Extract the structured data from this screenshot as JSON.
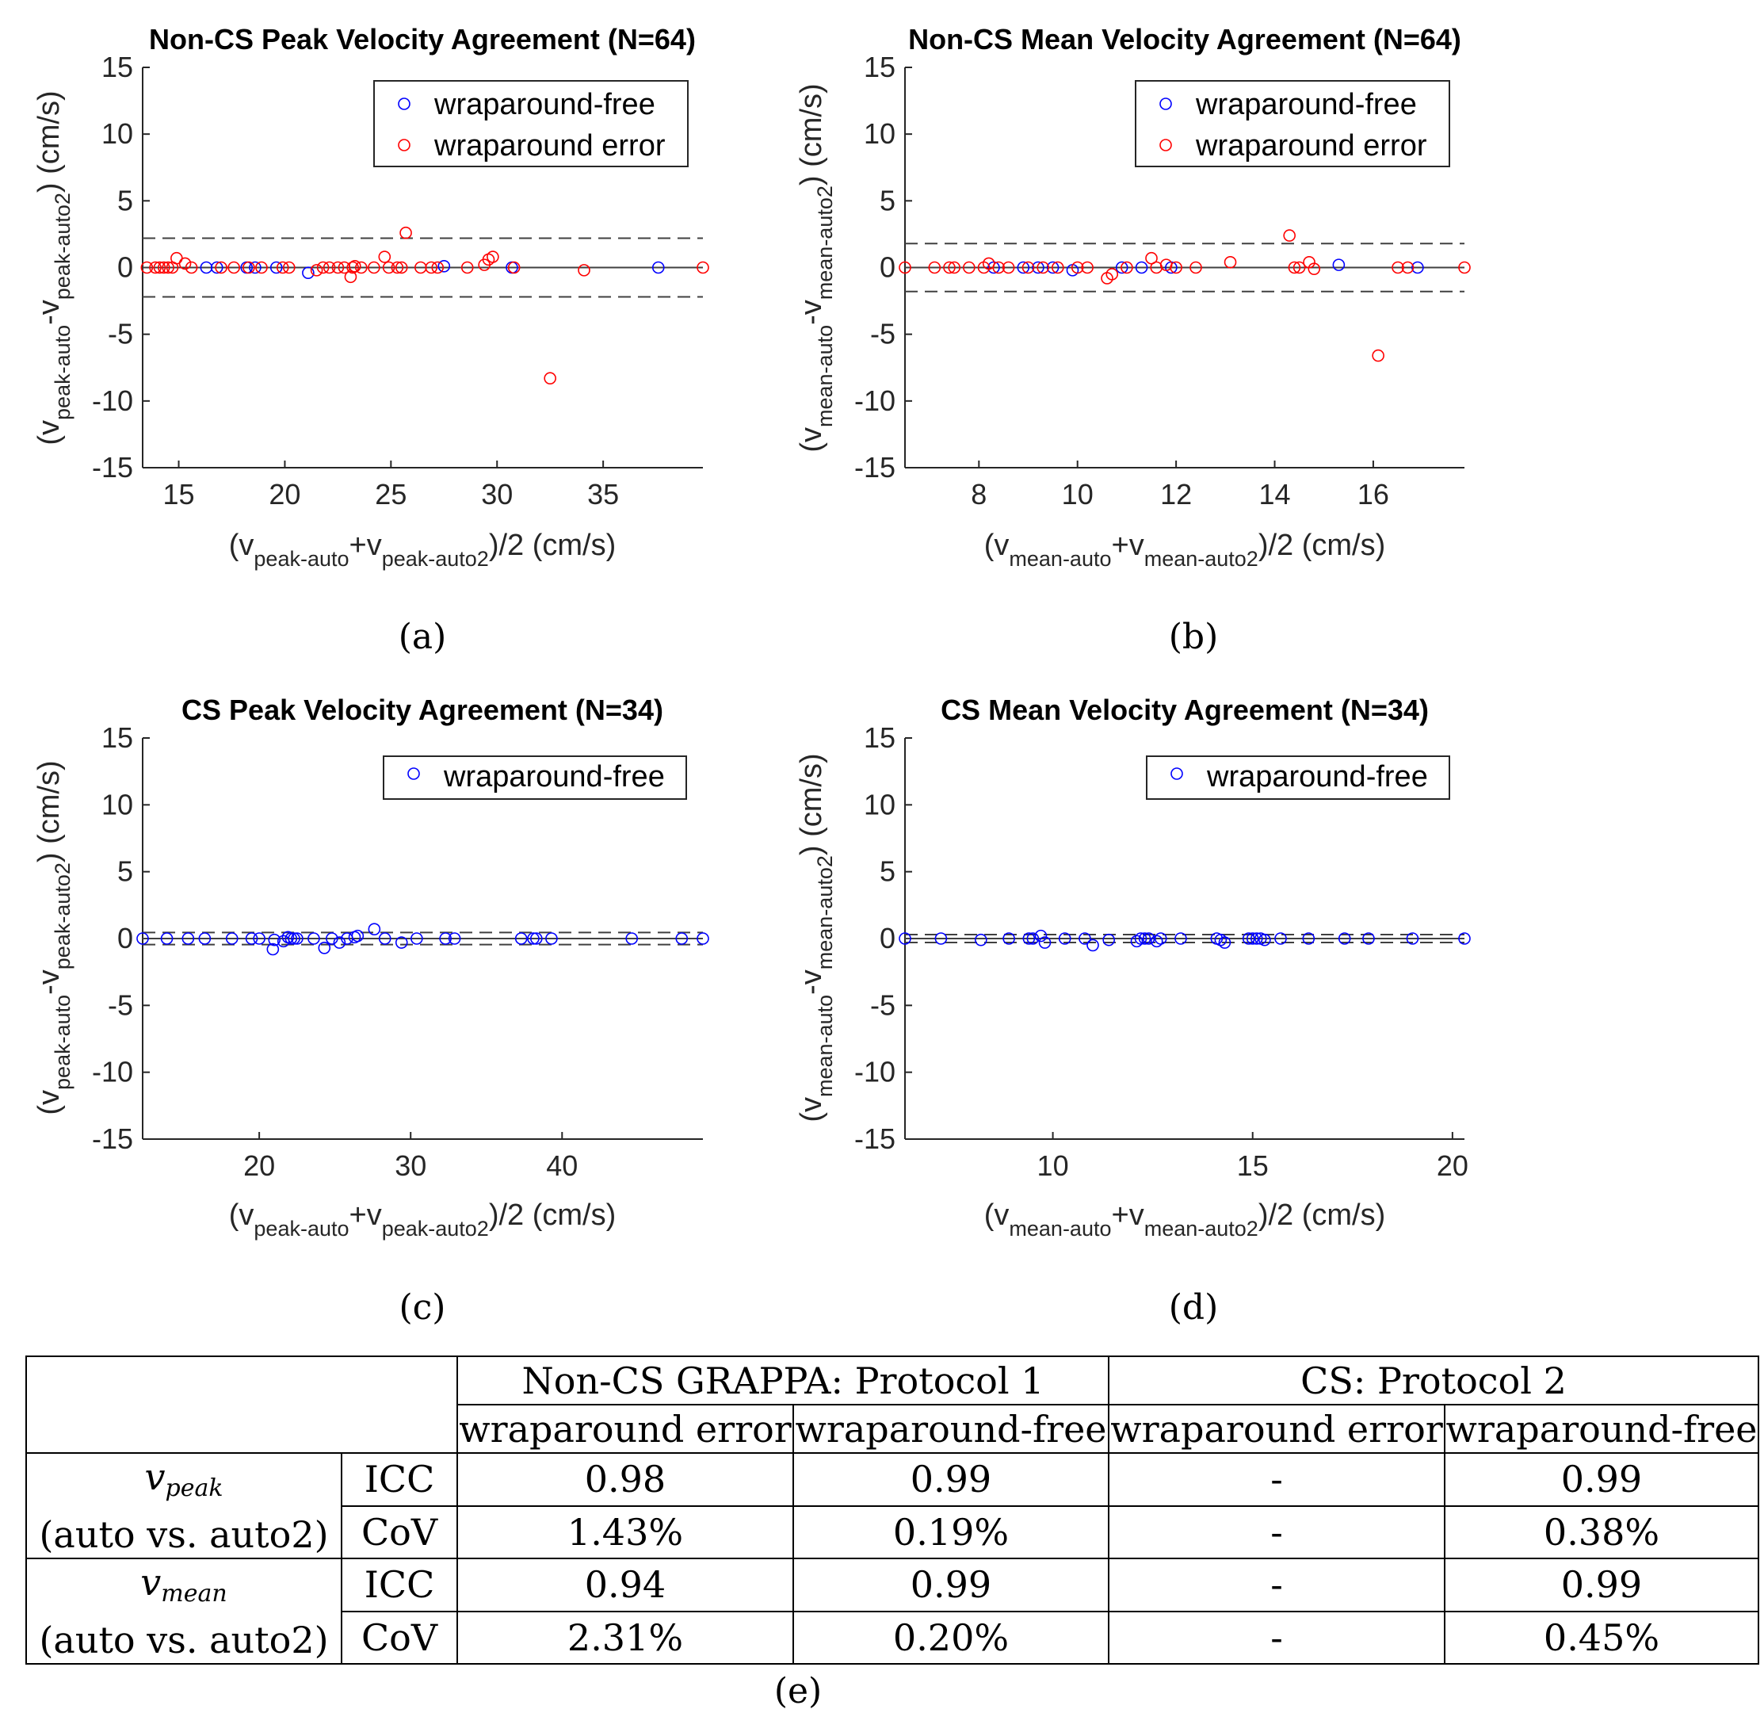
{
  "chart_data": [
    {
      "type": "scatter",
      "panel": "a",
      "title": "Non-CS Peak Velocity Agreement (N=64)",
      "xlabel": "(v_peak-auto + v_peak-auto2)/2 (cm/s)",
      "ylabel": "(v_peak-auto - v_peak-auto2) (cm/s)",
      "xlabel_parts": {
        "pre": "(v",
        "s1": "peak-auto",
        "mid": "+v",
        "s2": "peak-auto2",
        "post": ")/2 (cm/s)"
      },
      "ylabel_parts": {
        "pre": "(v",
        "s1": "peak-auto",
        "mid": "-v",
        "s2": "peak-auto2",
        "post": ") (cm/s)"
      },
      "xlim": [
        13.3,
        39.7
      ],
      "ylim": [
        -15,
        15
      ],
      "xticks": [
        15,
        20,
        25,
        30,
        35
      ],
      "yticks": [
        15,
        10,
        5,
        0,
        -5,
        -10,
        -15
      ],
      "mean_line": 0,
      "limits_of_agreement": [
        2.2,
        -2.2
      ],
      "caption": "(a)",
      "legend": [
        "wraparound-free",
        "wraparound error"
      ],
      "series": [
        {
          "name": "wraparound-free",
          "color": "#0000ff",
          "x": [
            16.3,
            16.8,
            18.2,
            18.6,
            19.6,
            21.1,
            27.5,
            30.7,
            37.6
          ],
          "y": [
            0,
            0,
            0,
            0,
            0,
            -0.4,
            0.1,
            0,
            0
          ]
        },
        {
          "name": "wraparound error",
          "color": "#ff0000",
          "x": [
            13.5,
            13.9,
            14.1,
            14.3,
            14.5,
            14.7,
            14.9,
            15.3,
            15.6,
            17.0,
            17.6,
            18.3,
            18.9,
            19.9,
            20.2,
            21.5,
            21.8,
            22.1,
            22.5,
            22.8,
            23.1,
            23.2,
            23.3,
            23.6,
            24.2,
            24.7,
            24.9,
            25.3,
            25.5,
            25.7,
            26.4,
            26.9,
            27.2,
            28.6,
            29.4,
            29.6,
            29.8,
            30.8,
            32.5,
            34.1,
            39.7
          ],
          "y": [
            0,
            0,
            0,
            0,
            0,
            0,
            0.7,
            0.3,
            0,
            0,
            0,
            0,
            0,
            0,
            0,
            -0.2,
            0,
            0,
            0,
            0,
            -0.7,
            0,
            0.1,
            0,
            0,
            0.8,
            0,
            0,
            0,
            2.6,
            0,
            0,
            0,
            0,
            0.2,
            0.6,
            0.8,
            0,
            -8.3,
            -0.2,
            0
          ]
        }
      ]
    },
    {
      "type": "scatter",
      "panel": "b",
      "title": "Non-CS Mean Velocity Agreement (N=64)",
      "xlabel": "(v_mean-auto + v_mean-auto2)/2 (cm/s)",
      "ylabel": "(v_mean-auto - v_mean-auto2) (cm/s)",
      "xlabel_parts": {
        "pre": "(v",
        "s1": "mean-auto",
        "mid": "+v",
        "s2": "mean-auto2",
        "post": ")/2 (cm/s)"
      },
      "ylabel_parts": {
        "pre": "(v",
        "s1": "mean-auto",
        "mid": "-v",
        "s2": "mean-auto2",
        "post": ") (cm/s)"
      },
      "xlim": [
        6.5,
        17.85
      ],
      "ylim": [
        -15,
        15
      ],
      "xticks": [
        8,
        10,
        12,
        14,
        16
      ],
      "yticks": [
        15,
        10,
        5,
        0,
        -5,
        -10,
        -15
      ],
      "mean_line": 0,
      "limits_of_agreement": [
        1.8,
        -1.8
      ],
      "caption": "(b)",
      "legend": [
        "wraparound-free",
        "wraparound error"
      ],
      "series": [
        {
          "name": "wraparound-free",
          "color": "#0000ff",
          "x": [
            8.3,
            8.9,
            9.2,
            9.5,
            9.9,
            10.9,
            11.3,
            11.9,
            15.3,
            16.9
          ],
          "y": [
            0,
            0,
            0,
            0,
            -0.2,
            0,
            0,
            0,
            0.2,
            0
          ]
        },
        {
          "name": "wraparound error",
          "color": "#ff0000",
          "x": [
            6.5,
            7.1,
            7.4,
            7.5,
            7.8,
            8.1,
            8.2,
            8.4,
            8.6,
            9.0,
            9.3,
            9.6,
            10.0,
            10.2,
            10.6,
            10.7,
            11.0,
            11.5,
            11.6,
            11.8,
            12.0,
            12.4,
            13.1,
            14.3,
            14.4,
            14.5,
            14.7,
            14.8,
            16.1,
            16.5,
            16.7,
            17.85
          ],
          "y": [
            0,
            0,
            0,
            0,
            0,
            0,
            0.3,
            0,
            0,
            0,
            0,
            0,
            0,
            0,
            -0.8,
            -0.5,
            0,
            0.7,
            0,
            0.2,
            0,
            0,
            0.4,
            2.4,
            0,
            0,
            0.4,
            -0.1,
            -6.6,
            0,
            0,
            0
          ]
        }
      ]
    },
    {
      "type": "scatter",
      "panel": "c",
      "title": "CS Peak Velocity Agreement (N=34)",
      "xlabel": "(v_peak-auto + v_peak-auto2)/2 (cm/s)",
      "ylabel": "(v_peak-auto - v_peak-auto2) (cm/s)",
      "xlabel_parts": {
        "pre": "(v",
        "s1": "peak-auto",
        "mid": "+v",
        "s2": "peak-auto2",
        "post": ")/2 (cm/s)"
      },
      "ylabel_parts": {
        "pre": "(v",
        "s1": "peak-auto",
        "mid": "-v",
        "s2": "peak-auto2",
        "post": ") (cm/s)"
      },
      "xlim": [
        12.3,
        49.3
      ],
      "ylim": [
        -15,
        15
      ],
      "xticks": [
        20,
        30,
        40
      ],
      "yticks": [
        15,
        10,
        5,
        0,
        -5,
        -10,
        -15
      ],
      "mean_line": 0,
      "limits_of_agreement": [
        0.45,
        -0.45
      ],
      "caption": "(c)",
      "legend": [
        "wraparound-free"
      ],
      "series": [
        {
          "name": "wraparound-free",
          "color": "#0000ff",
          "x": [
            12.3,
            13.9,
            15.3,
            16.4,
            18.2,
            19.5,
            20.0,
            20.9,
            21.0,
            21.6,
            21.9,
            22.1,
            22.3,
            22.5,
            23.6,
            24.3,
            24.8,
            25.3,
            25.8,
            26.3,
            26.5,
            27.6,
            28.3,
            29.4,
            30.4,
            32.3,
            32.9,
            37.3,
            38.1,
            38.3,
            39.3,
            44.6,
            47.9,
            49.3
          ],
          "y": [
            0,
            0,
            0,
            0,
            0,
            0,
            0,
            -0.8,
            -0.1,
            -0.2,
            0.1,
            0,
            0,
            0,
            0,
            -0.7,
            0,
            -0.3,
            0,
            0.1,
            0.2,
            0.7,
            0,
            -0.3,
            0,
            0,
            0,
            0,
            0,
            0,
            0,
            0,
            0,
            0
          ]
        }
      ]
    },
    {
      "type": "scatter",
      "panel": "d",
      "title": "CS Mean Velocity Agreement (N=34)",
      "xlabel": "(v_mean-auto + v_mean-auto2)/2 (cm/s)",
      "ylabel": "(v_mean-auto - v_mean-auto2) (cm/s)",
      "xlabel_parts": {
        "pre": "(v",
        "s1": "mean-auto",
        "mid": "+v",
        "s2": "mean-auto2",
        "post": ")/2 (cm/s)"
      },
      "ylabel_parts": {
        "pre": "(v",
        "s1": "mean-auto",
        "mid": "-v",
        "s2": "mean-auto2",
        "post": ") (cm/s)"
      },
      "xlim": [
        6.3,
        20.3
      ],
      "ylim": [
        -15,
        15
      ],
      "xticks": [
        10,
        15,
        20
      ],
      "yticks": [
        15,
        10,
        5,
        0,
        -5,
        -10,
        -15
      ],
      "mean_line": 0,
      "limits_of_agreement": [
        0.3,
        -0.3
      ],
      "caption": "(d)",
      "legend": [
        "wraparound-free"
      ],
      "series": [
        {
          "name": "wraparound-free",
          "color": "#0000ff",
          "x": [
            6.3,
            7.2,
            8.2,
            8.9,
            9.4,
            9.5,
            9.7,
            9.8,
            10.3,
            10.8,
            11.0,
            11.4,
            12.1,
            12.2,
            12.3,
            12.4,
            12.6,
            12.7,
            13.2,
            14.1,
            14.2,
            14.3,
            14.9,
            15.0,
            15.1,
            15.2,
            15.3,
            15.7,
            16.4,
            17.3,
            17.9,
            19.0,
            20.3
          ],
          "y": [
            0,
            0,
            -0.1,
            0,
            0,
            0,
            0.2,
            -0.3,
            0,
            0,
            -0.5,
            -0.1,
            -0.2,
            0,
            0,
            0,
            -0.2,
            0,
            0,
            0,
            -0.1,
            -0.3,
            0,
            0,
            0,
            0,
            -0.1,
            0,
            0,
            0,
            0,
            0,
            0
          ]
        }
      ]
    }
  ],
  "table": {
    "caption": "(e)",
    "group_headers": [
      "Non-CS GRAPPA: Protocol 1",
      "CS: Protocol 2"
    ],
    "sub_headers": [
      "wraparound error",
      "wraparound-free",
      "wraparound error",
      "wraparound-free"
    ],
    "blocks": [
      {
        "symbol": "v",
        "subscript": "peak",
        "comparison": "(auto vs. auto2)",
        "rows": [
          {
            "metric": "ICC",
            "values": [
              "0.98",
              "0.99",
              "-",
              "0.99"
            ]
          },
          {
            "metric": "CoV",
            "values": [
              "1.43%",
              "0.19%",
              "-",
              "0.38%"
            ]
          }
        ]
      },
      {
        "symbol": "v",
        "subscript": "mean",
        "comparison": "(auto vs. auto2)",
        "rows": [
          {
            "metric": "ICC",
            "values": [
              "0.94",
              "0.99",
              "-",
              "0.99"
            ]
          },
          {
            "metric": "CoV",
            "values": [
              "2.31%",
              "0.20%",
              "-",
              "0.45%"
            ]
          }
        ]
      }
    ]
  }
}
